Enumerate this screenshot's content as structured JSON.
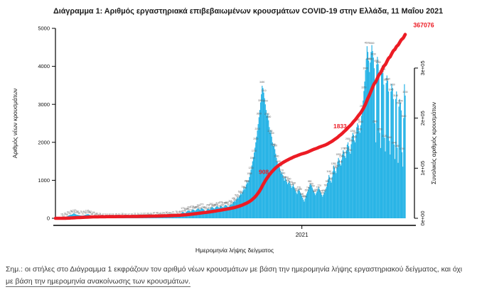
{
  "page": {
    "title": "Διάγραμμα 1: Αριθμός εργαστηριακά επιβεβαιωμένων κρουσμάτων COVID-19 στην Ελλάδα, 11 Μαΐου 2021",
    "note_line1": "Σημ.: οι στήλες στο Διάγραμμα 1 εκφράζουν τον αριθμό νέων κρουσμάτων με βάση την ημερομηνία λήψης εργαστηριακού δείγματος, και όχι",
    "note_line2": "με βάση την ημερομηνία ανακοίνωσης των κρουσμάτων."
  },
  "chart_data": {
    "type": "bar",
    "subtype": "daily bars + cumulative line (dual axis)",
    "xlabel": "Ημερομηνία λήψης δείγματος",
    "x_tick_labels": [
      "2021"
    ],
    "left_axis": {
      "label": "Αριθμός νέων κρουσμάτων",
      "ticks": [
        0,
        1000,
        2000,
        3000,
        4000,
        5000
      ],
      "range": [
        0,
        5000
      ]
    },
    "right_axis": {
      "label": "Συνολικός αριθμός κρουσμάτων",
      "tick_labels": [
        "0e+00",
        "1e+05",
        "2e+05",
        "3e+05"
      ],
      "range": [
        0,
        300000
      ]
    },
    "annotations": [
      {
        "text": "908",
        "value": 90800
      },
      {
        "text": "1833",
        "value": 183300
      },
      {
        "text": "367076",
        "value": 367076,
        "anchor": "end"
      }
    ],
    "cumulative_total": 367076,
    "daily_new_cases_by_month": {
      "2020-02": [
        1,
        2,
        3,
        4
      ],
      "2020-03": [
        5,
        7,
        9,
        12,
        15,
        18,
        22,
        27,
        33,
        40,
        48,
        57,
        67,
        78,
        90,
        99,
        95,
        105,
        112,
        131,
        120,
        110,
        100,
        95,
        90,
        85,
        82,
        78,
        75,
        72,
        70
      ],
      "2020-04": [
        75,
        80,
        86,
        92,
        99,
        105,
        110,
        100,
        90,
        82,
        75,
        68,
        62,
        56,
        50,
        45,
        40,
        36,
        32,
        29,
        26,
        24,
        22,
        20,
        18,
        17,
        16,
        15,
        14,
        13
      ],
      "2020-05": [
        12,
        11,
        10,
        12,
        14,
        16,
        15,
        13,
        12,
        11,
        13,
        15,
        17,
        16,
        14,
        13,
        12,
        14,
        16,
        18,
        17,
        15,
        14,
        16,
        18,
        20,
        19,
        17,
        16,
        15,
        14
      ],
      "2020-06": [
        16,
        18,
        20,
        22,
        21,
        19,
        18,
        21,
        24,
        27,
        26,
        24,
        22,
        26,
        30,
        34,
        32,
        29,
        27,
        31,
        36,
        41,
        39,
        36,
        33,
        38,
        44,
        50,
        47,
        43
      ],
      "2020-07": [
        40,
        44,
        48,
        52,
        49,
        45,
        42,
        47,
        52,
        57,
        54,
        50,
        47,
        53,
        60,
        67,
        63,
        58,
        54,
        61,
        68,
        75,
        71,
        66,
        62,
        70,
        78,
        86,
        81,
        75,
        70
      ],
      "2020-08": [
        110,
        130,
        152,
        170,
        160,
        148,
        138,
        155,
        175,
        196,
        210,
        200,
        186,
        173,
        195,
        218,
        235,
        225,
        210,
        196,
        220,
        245,
        262,
        250,
        235,
        220,
        246,
        270,
        258,
        242,
        228
      ],
      "2020-09": [
        190,
        178,
        210,
        240,
        258,
        245,
        228,
        255,
        282,
        300,
        286,
        268,
        252,
        280,
        308,
        325,
        310,
        292,
        275,
        305,
        332,
        318,
        300,
        284,
        312,
        340,
        355,
        340,
        320,
        302
      ],
      "2020-10": [
        310,
        330,
        355,
        382,
        365,
        400,
        430,
        462,
        440,
        478,
        515,
        552,
        528,
        565,
        610,
        660,
        630,
        680,
        735,
        795,
        760,
        822,
        890,
        965,
        925,
        1000,
        1085,
        1180,
        1280,
        1390,
        1500
      ],
      "2020-11": [
        1610,
        1730,
        1860,
        2000,
        2150,
        2310,
        2480,
        2660,
        2850,
        3050,
        3265,
        3490,
        3430,
        3310,
        3160,
        3000,
        2850,
        2700,
        2760,
        2580,
        2400,
        2250,
        2320,
        2150,
        2000,
        1900,
        1960,
        1820,
        1700,
        1590
      ],
      "2020-12": [
        1490,
        1400,
        1440,
        1340,
        1250,
        1170,
        1220,
        1140,
        1060,
        990,
        1090,
        1030,
        960,
        900,
        940,
        990,
        920,
        860,
        800,
        840,
        890,
        830,
        780,
        730,
        680,
        640,
        720,
        770,
        730,
        680,
        640
      ],
      "2021-01": [
        590,
        540,
        490,
        440,
        520,
        600,
        650,
        700,
        760,
        820,
        880,
        908,
        860,
        810,
        760,
        710,
        660,
        610,
        660,
        710,
        770,
        820,
        770,
        720,
        670,
        620,
        570,
        620,
        680,
        730,
        780
      ],
      "2021-02": [
        830,
        930,
        1030,
        1140,
        1090,
        990,
        940,
        1090,
        1240,
        1390,
        1340,
        1240,
        1190,
        1340,
        1490,
        1590,
        1540,
        1440,
        1390,
        1540,
        1690,
        1790,
        1740,
        1640,
        1590,
        1790,
        1940,
        2000
      ],
      "2021-03": [
        1900,
        1750,
        1700,
        1950,
        2150,
        2250,
        2200,
        2050,
        2000,
        2200,
        2400,
        2500,
        2450,
        2300,
        2250,
        2450,
        2700,
        2900,
        3100,
        3350,
        3600,
        3900,
        4200,
        4530,
        4380,
        4150,
        3850,
        4100,
        4380,
        4560,
        4400
      ],
      "2021-04": [
        4230,
        3950,
        2500,
        2000,
        4050,
        4250,
        4060,
        3720,
        2250,
        1850,
        3820,
        4020,
        3830,
        3520,
        2120,
        1760,
        3560,
        3760,
        3620,
        3340,
        2040,
        1680,
        3340,
        3540,
        3430,
        3140,
        1940,
        1560,
        3140,
        3340
      ],
      "2021-05": [
        1860,
        1460,
        2940,
        3140,
        3040,
        2840,
        1740,
        1360,
        2640,
        3530,
        3230
      ]
    },
    "colors": {
      "bar": "#29b4e6",
      "line": "#ec1b24",
      "annotation": "#ec1b24",
      "bar_label": "#5a5a5a",
      "axis": "#000000"
    }
  }
}
